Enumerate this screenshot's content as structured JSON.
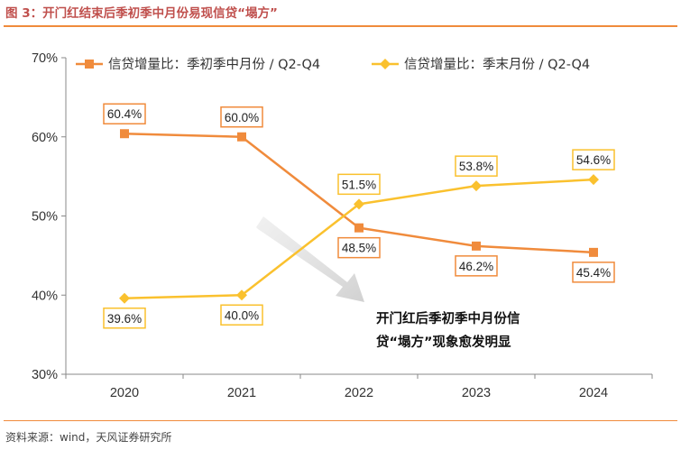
{
  "header": {
    "title": "图 3：开门红结束后季初季中月份易现信贷“塌方”"
  },
  "footer": {
    "source": "资料来源：wind，天风证券研究所"
  },
  "chart_data": {
    "type": "line",
    "categories": [
      "2020",
      "2021",
      "2022",
      "2023",
      "2024"
    ],
    "ylim": [
      30,
      70
    ],
    "yticks": [
      30,
      40,
      50,
      60,
      70
    ],
    "ytick_labels": [
      "30%",
      "40%",
      "50%",
      "60%",
      "70%"
    ],
    "grid": false,
    "legend_position": "top",
    "series": [
      {
        "name": "信贷增量比：季初季中月份 / Q2-Q4",
        "values": [
          60.4,
          60.0,
          48.5,
          46.2,
          45.4
        ],
        "labels": [
          "60.4%",
          "60.0%",
          "48.5%",
          "46.2%",
          "45.4%"
        ],
        "color": "#F08B3C",
        "marker": "square"
      },
      {
        "name": "信贷增量比：季末月份 / Q2-Q4",
        "values": [
          39.6,
          40.0,
          51.5,
          53.8,
          54.6
        ],
        "labels": [
          "39.6%",
          "40.0%",
          "51.5%",
          "53.8%",
          "54.6%"
        ],
        "color": "#FAC12E",
        "marker": "diamond"
      }
    ],
    "annotation": {
      "line1": "开门红后季初季中月份信",
      "line2": "贷“塌方”现象愈发明显"
    }
  }
}
